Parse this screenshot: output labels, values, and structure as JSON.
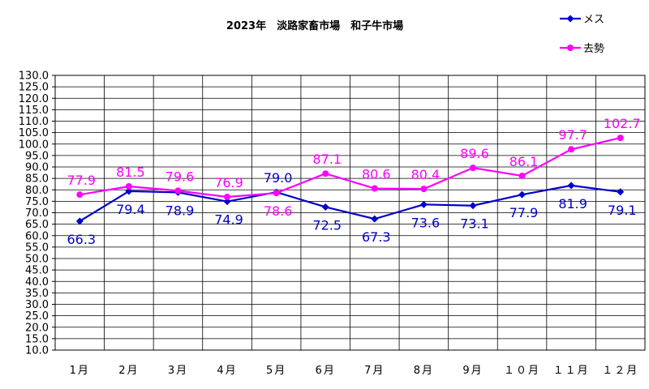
{
  "chart_data": {
    "type": "line",
    "title": "2023年　淡路家畜市場　和子牛市場",
    "categories": [
      "1月",
      "2月",
      "3月",
      "4月",
      "5月",
      "6月",
      "7月",
      "8月",
      "9月",
      "１０月",
      "１１月",
      "１２月"
    ],
    "series": [
      {
        "name": "メス",
        "color": "#0000CC",
        "marker": "diamond",
        "values": [
          66.3,
          79.4,
          78.9,
          74.9,
          79.0,
          72.5,
          67.3,
          73.6,
          73.1,
          77.9,
          81.9,
          79.1
        ]
      },
      {
        "name": "去勢",
        "color": "#FF00FF",
        "marker": "circle",
        "values": [
          77.9,
          81.5,
          79.6,
          76.9,
          78.6,
          87.1,
          80.6,
          80.4,
          89.6,
          86.1,
          97.7,
          102.7
        ]
      }
    ],
    "ylim": [
      10,
      130
    ],
    "ystep": 5,
    "ytick_decimals": 1,
    "grid": true,
    "legend_position": "top-right"
  }
}
